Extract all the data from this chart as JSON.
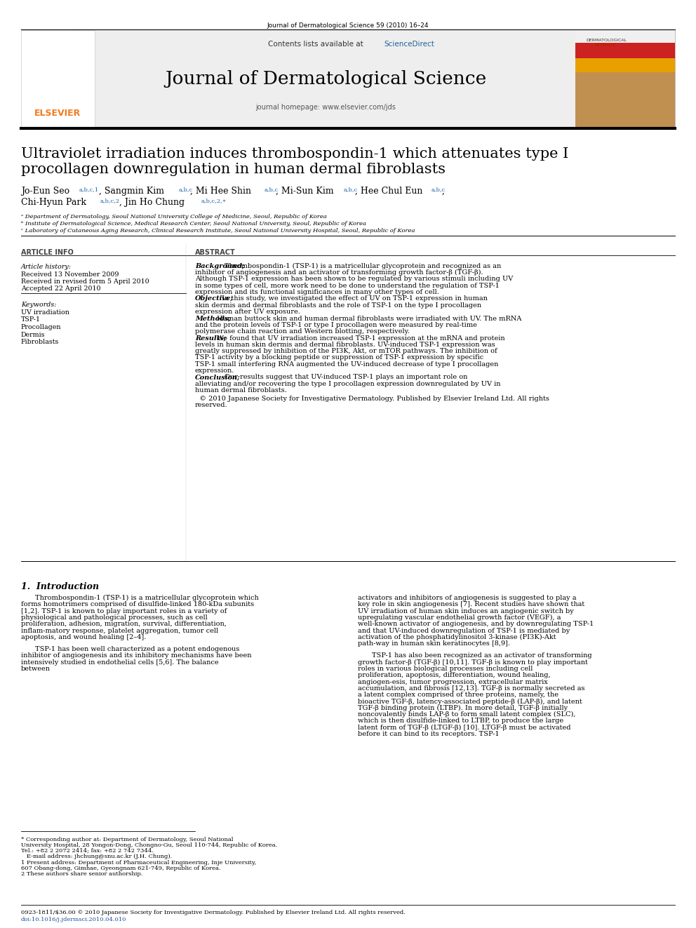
{
  "journal_ref": "Journal of Dermatological Science 59 (2010) 16–24",
  "contents_text": "Contents lists available at ",
  "sciencedirect_text": "ScienceDirect",
  "journal_name": "Journal of Dermatological Science",
  "journal_homepage": "journal homepage: www.elsevier.com/jds",
  "article_title_line1": "Ultraviolet irradiation induces thrombospondin-1 which attenuates type I",
  "article_title_line2": "procollagen downregulation in human dermal fibroblasts",
  "affil_a": "ᵃ Department of Dermatology, Seoul National University College of Medicine, Seoul, Republic of Korea",
  "affil_b": "ᵇ Institute of Dermatological Science, Medical Research Center, Seoul National University, Seoul, Republic of Korea",
  "affil_c": "ᶜ Laboratory of Cutaneous Aging Research, Clinical Research Institute, Seoul National University Hospital, Seoul, Republic of Korea",
  "section_article_info": "ARTICLE INFO",
  "section_abstract": "ABSTRACT",
  "article_history_label": "Article history:",
  "received1": "Received 13 November 2009",
  "received2": "Received in revised form 5 April 2010",
  "accepted": "Accepted 22 April 2010",
  "keywords_label": "Keywords:",
  "keywords": [
    "UV irradiation",
    "TSP-1",
    "Procollagen",
    "Dermis",
    "Fibroblasts"
  ],
  "intro_heading": "1.  Introduction",
  "footnote_star": "* Corresponding author at: Department of Dermatology, Seoul National University Hospital, 28 Yongon-Dong, Chongno-Gu, Seoul 110-744, Republic of",
  "footnote_star2": "Korea. Tel.: +82 2 2072 2414; fax: +82 2 742 7344.",
  "footnote_email": "   E-mail address: jhchung@snu.ac.kr (J.H. Chung).",
  "footnote_1": "1 Present address: Department of Pharmaceutical Engineering, Inje University, 607 Obang-dong, Gimhae, Gyeongnam 621-749, Republic of Korea.",
  "footnote_2": "2 These authors share senior authorship.",
  "bottom_copyright": "0923-1811/$36.00 © 2010 Japanese Society for Investigative Dermatology. Published by Elsevier Ireland Ltd. All rights reserved.",
  "bottom_doi": "doi:10.1016/j.jdermsci.2010.04.010",
  "bg_color": "#ffffff",
  "elsevier_orange": "#F47920",
  "sciencedirect_blue": "#2060a0",
  "blue_link_color": "#2060a0",
  "doi_blue": "#1a50a0"
}
